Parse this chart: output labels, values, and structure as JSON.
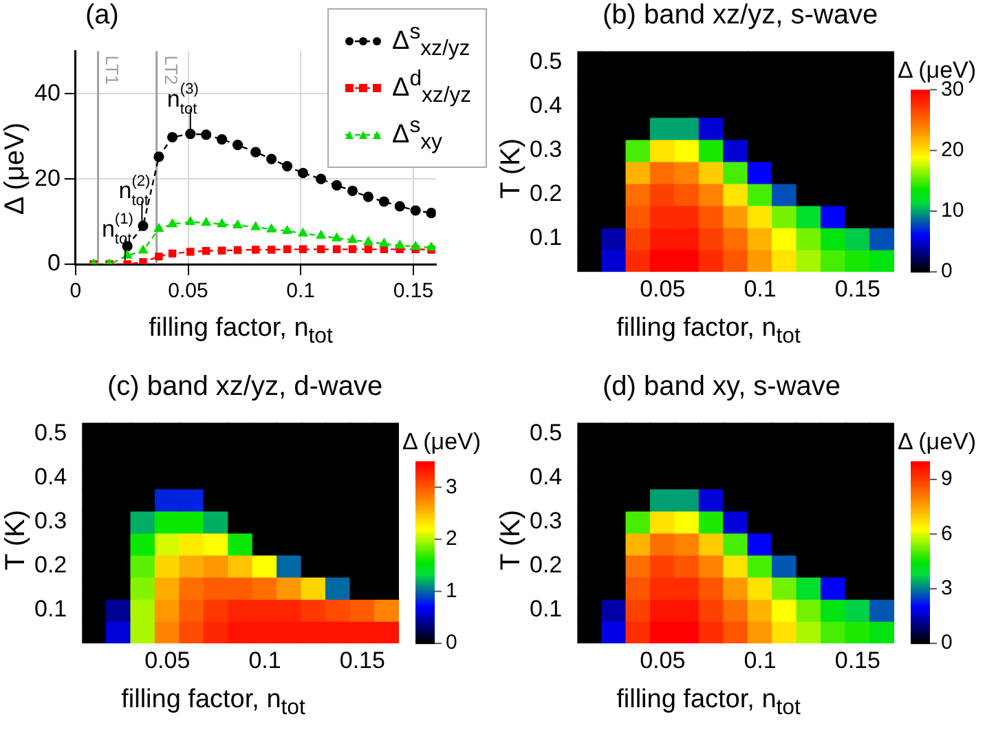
{
  "chart_data": [
    {
      "type": "line",
      "title": "(a)",
      "xlabel": "filling factor, n$_{tot}$",
      "ylabel": "Δ (μeV)",
      "x": [
        0.008,
        0.015,
        0.023,
        0.03,
        0.037,
        0.043,
        0.051,
        0.058,
        0.065,
        0.072,
        0.08,
        0.087,
        0.094,
        0.101,
        0.109,
        0.116,
        0.123,
        0.13,
        0.137,
        0.144,
        0.151,
        0.158
      ],
      "series": [
        {
          "name": "Δ$^{s}$$_{xz/yz}$",
          "color": "#000000",
          "marker": "circle",
          "values": [
            null,
            null,
            4.2,
            9.0,
            25.2,
            29.8,
            30.6,
            30.4,
            29.3,
            28,
            26.3,
            24.7,
            23,
            21.4,
            20,
            18.5,
            17.2,
            15.8,
            14.7,
            13.6,
            12.6,
            12
          ]
        },
        {
          "name": "Δ$^{d}$$_{xz/yz}$",
          "color": "#ff0000",
          "marker": "square",
          "values": [
            0,
            0,
            0,
            0.5,
            1.8,
            2.5,
            2.9,
            3.1,
            3.2,
            3.3,
            3.4,
            3.4,
            3.5,
            3.5,
            3.5,
            3.5,
            3.5,
            3.5,
            3.5,
            3.5,
            3.5,
            3.4
          ]
        },
        {
          "name": "Δ$^{s}$$_{xy}$",
          "color": "#00dd00",
          "marker": "triangle",
          "values": [
            0,
            0,
            2.0,
            3.2,
            8.3,
            9.4,
            9.9,
            9.7,
            9.4,
            9.1,
            8.7,
            8.2,
            7.8,
            7.2,
            6.7,
            6.1,
            5.7,
            5.2,
            4.8,
            4.4,
            4.1,
            3.9
          ]
        }
      ],
      "xlim": [
        0,
        0.16
      ],
      "xticks": [
        0,
        0.05,
        0.1,
        0.15
      ],
      "ylim": [
        0,
        50
      ],
      "yticks": [
        0,
        20,
        40
      ],
      "grid": true,
      "legend": "top right",
      "line_style": "dashed",
      "ref_lines": [
        {
          "axis": "x",
          "value": 0.01,
          "label": "LT1",
          "color": "#a0a0a0"
        },
        {
          "axis": "x",
          "value": 0.036,
          "label": "LT2",
          "color": "#a0a0a0"
        }
      ],
      "annotations": [
        {
          "text": "n$_{tot}$$^{(1)}$",
          "x": 0.022,
          "y": 0
        },
        {
          "text": "n$_{tot}$$^{(2)}$",
          "x": 0.0295,
          "y": 9
        },
        {
          "text": "n$_{tot}$$^{(3)}$",
          "x": 0.051,
          "y": 30.6
        }
      ]
    },
    {
      "type": "heatmap",
      "title": "(b) band xz/yz, s-wave",
      "xlabel": "filling factor, n$_{tot}$",
      "ylabel": "T (K)",
      "clabel": "Δ (μeV)",
      "categories": [
        null,
        null,
        null,
        "0.05",
        null,
        null,
        null,
        "0.1",
        null,
        null,
        null,
        "0.15",
        null
      ],
      "y_categories": [
        "0.5",
        null,
        "0.4",
        null,
        "0.3",
        null,
        "0.2",
        null,
        "0.1",
        null
      ],
      "cells": [
        [
          0,
          0,
          0,
          0,
          0,
          0,
          0,
          0,
          0,
          0,
          0,
          0,
          0
        ],
        [
          0,
          0,
          0,
          0,
          0,
          0,
          0,
          0,
          0,
          0,
          0,
          0,
          0
        ],
        [
          0,
          0,
          0,
          0,
          0,
          0,
          0,
          0,
          0,
          0,
          0,
          0,
          0
        ],
        [
          0,
          0,
          0,
          10,
          10,
          5,
          0,
          0,
          0,
          0,
          0,
          0,
          0
        ],
        [
          0,
          0,
          15,
          20,
          19,
          14,
          5,
          0,
          0,
          0,
          0,
          0,
          0
        ],
        [
          0,
          0,
          22,
          25,
          24,
          21,
          15,
          6,
          0,
          0,
          0,
          0,
          0
        ],
        [
          0,
          0,
          25,
          27,
          26,
          24,
          20,
          15,
          8,
          0,
          0,
          0,
          0
        ],
        [
          0,
          0,
          26,
          28,
          28,
          26,
          23,
          20,
          16,
          12,
          6,
          0,
          0
        ],
        [
          0,
          4,
          27,
          29,
          29,
          27,
          25,
          22,
          19,
          16,
          13,
          11,
          8
        ],
        [
          0,
          5,
          28,
          30,
          30,
          28,
          26,
          23,
          20,
          17,
          15,
          14,
          13
        ]
      ],
      "clim": [
        0,
        30
      ],
      "cticks": [
        0,
        10,
        20,
        30
      ]
    },
    {
      "type": "heatmap",
      "title": "(c) band xz/yz, d-wave",
      "xlabel": "filling factor, n$_{tot}$",
      "ylabel": "T (K)",
      "clabel": "Δ (μeV)",
      "categories": [
        null,
        null,
        null,
        "0.05",
        null,
        null,
        null,
        "0.1",
        null,
        null,
        null,
        "0.15",
        null
      ],
      "y_categories": [
        "0.5",
        null,
        "0.4",
        null,
        "0.3",
        null,
        "0.2",
        null,
        "0.1",
        null
      ],
      "cells": [
        [
          0,
          0,
          0,
          0,
          0,
          0,
          0,
          0,
          0,
          0,
          0,
          0,
          0
        ],
        [
          0,
          0,
          0,
          0,
          0,
          0,
          0,
          0,
          0,
          0,
          0,
          0,
          0
        ],
        [
          0,
          0,
          0,
          0,
          0,
          0,
          0,
          0,
          0,
          0,
          0,
          0,
          0
        ],
        [
          0,
          0,
          0,
          0.8,
          0.8,
          0,
          0,
          0,
          0,
          0,
          0,
          0,
          0
        ],
        [
          0,
          0,
          1.2,
          1.6,
          1.6,
          1.2,
          0,
          0,
          0,
          0,
          0,
          0,
          0
        ],
        [
          0,
          0,
          1.6,
          2.1,
          2.3,
          2.2,
          1.6,
          0,
          0,
          0,
          0,
          0,
          0
        ],
        [
          0,
          0,
          1.8,
          2.4,
          2.6,
          2.7,
          2.5,
          2.2,
          1.0,
          0,
          0,
          0,
          0
        ],
        [
          0,
          0,
          1.9,
          2.6,
          2.9,
          3.0,
          3.0,
          2.9,
          2.7,
          2.4,
          1.0,
          0,
          0
        ],
        [
          0,
          0.4,
          2.0,
          2.7,
          3.0,
          3.2,
          3.3,
          3.3,
          3.3,
          3.2,
          3.1,
          3.0,
          2.8
        ],
        [
          0,
          0.6,
          2.0,
          2.8,
          3.1,
          3.3,
          3.4,
          3.4,
          3.4,
          3.4,
          3.4,
          3.4,
          3.4
        ]
      ],
      "clim": [
        0,
        3.5
      ],
      "cticks": [
        0,
        1,
        2,
        3
      ]
    },
    {
      "type": "heatmap",
      "title": "(d) band xy, s-wave",
      "xlabel": "filling factor, n$_{tot}$",
      "ylabel": "T (K)",
      "clabel": "Δ (μeV)",
      "categories": [
        null,
        null,
        null,
        "0.05",
        null,
        null,
        null,
        "0.1",
        null,
        null,
        null,
        "0.15",
        null
      ],
      "y_categories": [
        "0.5",
        null,
        "0.4",
        null,
        "0.3",
        null,
        "0.2",
        null,
        "0.1",
        null
      ],
      "cells": [
        [
          0,
          0,
          0,
          0,
          0,
          0,
          0,
          0,
          0,
          0,
          0,
          0,
          0
        ],
        [
          0,
          0,
          0,
          0,
          0,
          0,
          0,
          0,
          0,
          0,
          0,
          0,
          0
        ],
        [
          0,
          0,
          0,
          0,
          0,
          0,
          0,
          0,
          0,
          0,
          0,
          0,
          0
        ],
        [
          0,
          0,
          0,
          3.3,
          3.3,
          1.7,
          0,
          0,
          0,
          0,
          0,
          0,
          0
        ],
        [
          0,
          0,
          5,
          6.7,
          6.3,
          4.7,
          1.7,
          0,
          0,
          0,
          0,
          0,
          0
        ],
        [
          0,
          0,
          7.3,
          8.3,
          8,
          7,
          5,
          2,
          0,
          0,
          0,
          0,
          0
        ],
        [
          0,
          0,
          8.3,
          9,
          8.7,
          8,
          6.7,
          5,
          2.7,
          0,
          0,
          0,
          0
        ],
        [
          0,
          0,
          8.7,
          9.3,
          9.3,
          8.7,
          7.7,
          6.7,
          5.3,
          4,
          2,
          0,
          0
        ],
        [
          0,
          1.3,
          9,
          9.7,
          9.7,
          9,
          8.3,
          7.3,
          6.3,
          5.3,
          4.3,
          3.7,
          2.7
        ],
        [
          0,
          1.8,
          9.3,
          10,
          10,
          9.3,
          8.7,
          7.7,
          6.7,
          5.7,
          5,
          4.7,
          4.3
        ]
      ],
      "clim": [
        0,
        10
      ],
      "cticks": [
        0,
        3,
        6,
        9
      ]
    }
  ]
}
